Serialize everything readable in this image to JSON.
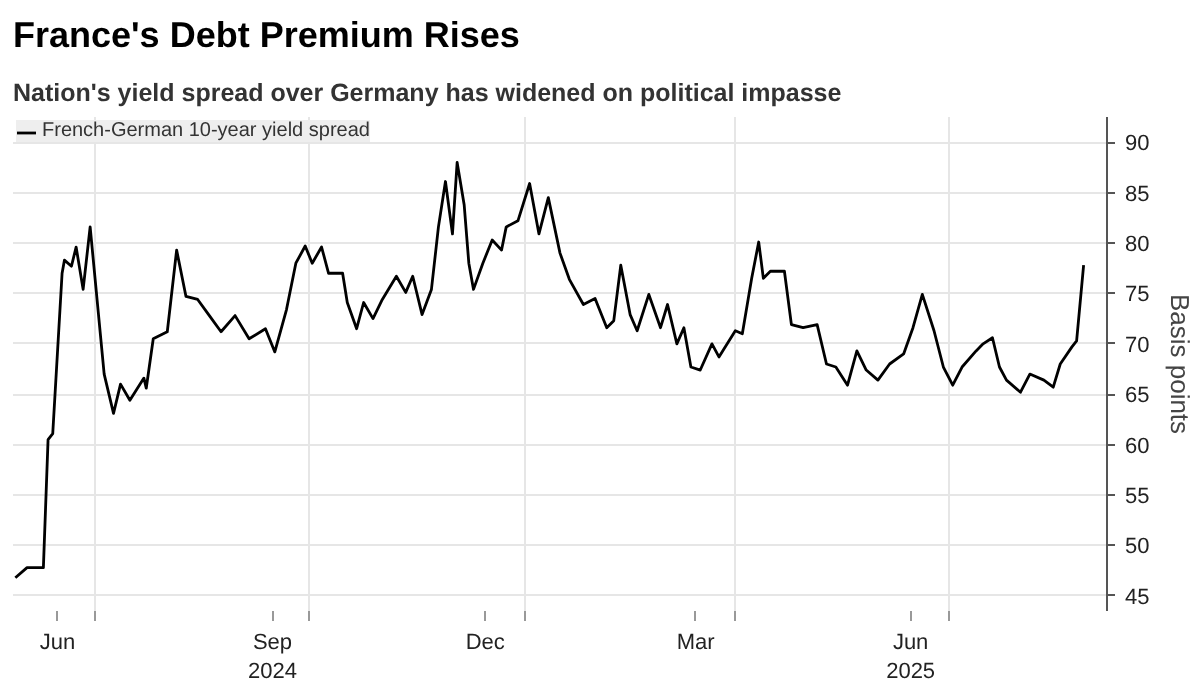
{
  "chart_data": {
    "type": "line",
    "title": "France's Debt Premium Rises",
    "subtitle": "Nation's yield spread over Germany has widened on political impasse",
    "ylabel": "Basis points",
    "x": [
      "2024-05-28",
      "2024-06-02",
      "2024-06-09",
      "2024-06-11",
      "2024-06-13",
      "2024-06-17",
      "2024-06-18",
      "2024-06-21",
      "2024-06-23",
      "2024-06-26",
      "2024-06-29",
      "2024-07-05",
      "2024-07-09",
      "2024-07-12",
      "2024-07-16",
      "2024-07-22",
      "2024-07-23",
      "2024-07-26",
      "2024-08-01",
      "2024-08-05",
      "2024-08-09",
      "2024-08-14",
      "2024-08-19",
      "2024-08-24",
      "2024-08-30",
      "2024-09-05",
      "2024-09-12",
      "2024-09-16",
      "2024-09-21",
      "2024-09-25",
      "2024-09-29",
      "2024-10-02",
      "2024-10-06",
      "2024-10-09",
      "2024-10-15",
      "2024-10-17",
      "2024-10-21",
      "2024-10-24",
      "2024-10-28",
      "2024-11-01",
      "2024-11-07",
      "2024-11-11",
      "2024-11-14",
      "2024-11-18",
      "2024-11-22",
      "2024-11-25",
      "2024-11-28",
      "2024-12-01",
      "2024-12-03",
      "2024-12-06",
      "2024-12-08",
      "2024-12-10",
      "2024-12-14",
      "2024-12-18",
      "2024-12-22",
      "2024-12-24",
      "2024-12-29",
      "2025-01-03",
      "2025-01-07",
      "2025-01-11",
      "2025-01-16",
      "2025-01-20",
      "2025-01-26",
      "2025-01-31",
      "2025-02-05",
      "2025-02-08",
      "2025-02-11",
      "2025-02-15",
      "2025-02-18",
      "2025-02-23",
      "2025-02-28",
      "2025-03-03",
      "2025-03-07",
      "2025-03-10",
      "2025-03-13",
      "2025-03-17",
      "2025-03-22",
      "2025-03-25",
      "2025-04-01",
      "2025-04-04",
      "2025-04-08",
      "2025-04-11",
      "2025-04-13",
      "2025-04-16",
      "2025-04-22",
      "2025-04-25",
      "2025-04-30",
      "2025-05-06",
      "2025-05-10",
      "2025-05-14",
      "2025-05-19",
      "2025-05-23",
      "2025-05-27",
      "2025-06-01",
      "2025-06-06",
      "2025-06-12",
      "2025-06-16",
      "2025-06-20",
      "2025-06-25",
      "2025-06-29",
      "2025-07-03",
      "2025-07-07",
      "2025-07-13",
      "2025-07-16",
      "2025-07-20",
      "2025-07-23",
      "2025-07-26",
      "2025-08-01",
      "2025-08-05",
      "2025-08-11",
      "2025-08-15",
      "2025-08-18",
      "2025-08-23",
      "2025-08-25",
      "2025-08-28"
    ],
    "series": [
      {
        "name": "French-German 10-year yield spread",
        "color": "#000000",
        "values": [
          46.8,
          47.8,
          47.8,
          60.5,
          61.1,
          77,
          78.3,
          77.7,
          79.6,
          75.4,
          81.6,
          67,
          63.1,
          66,
          64.4,
          66.6,
          65.6,
          70.5,
          71.2,
          79.3,
          74.7,
          74.4,
          72.8,
          71.2,
          72.8,
          70.5,
          71.5,
          69.2,
          73.4,
          78,
          79.7,
          78,
          79.6,
          77,
          77,
          74.1,
          71.5,
          74.1,
          72.5,
          74.4,
          76.7,
          75.1,
          76.7,
          72.9,
          75.4,
          81.6,
          86.1,
          80.9,
          88,
          83.8,
          78,
          75.4,
          78,
          80.3,
          79.3,
          81.6,
          82.2,
          85.9,
          80.9,
          84.5,
          79,
          76.4,
          73.9,
          74.5,
          71.6,
          72.3,
          77.8,
          72.9,
          71.3,
          74.9,
          71.6,
          73.9,
          70,
          71.6,
          67.7,
          67.4,
          70,
          68.7,
          71.3,
          71,
          76.5,
          80.1,
          76.5,
          77.2,
          77.2,
          71.9,
          71.6,
          71.9,
          68,
          67.7,
          65.9,
          69.3,
          67.4,
          66.4,
          68,
          69,
          71.6,
          74.9,
          71.3,
          67.7,
          65.9,
          67.7,
          69.3,
          70,
          70.6,
          67.7,
          66.4,
          65.2,
          67,
          66.4,
          65.7,
          68,
          69.7,
          70.3,
          77.8
        ]
      }
    ],
    "xlim": [
      "2024-05-27",
      "2025-09-07"
    ],
    "xticks": [
      {
        "value": "2024-06-15",
        "label": "Jun"
      },
      {
        "value": "2024-07-01",
        "label": null
      },
      {
        "value": "2024-09-15",
        "label": "Sep\n2024"
      },
      {
        "value": "2024-10-01",
        "label": null
      },
      {
        "value": "2024-12-15",
        "label": "Dec"
      },
      {
        "value": "2025-01-01",
        "label": null
      },
      {
        "value": "2025-03-15",
        "label": "Mar"
      },
      {
        "value": "2025-04-01",
        "label": null
      },
      {
        "value": "2025-06-15",
        "label": "Jun\n2025"
      },
      {
        "value": "2025-07-01",
        "label": null
      }
    ],
    "ylim": [
      43.5,
      92.5
    ],
    "yticks": [
      45,
      50,
      55,
      60,
      65,
      70,
      75,
      80,
      85,
      90
    ],
    "grid": true,
    "legend": "top left",
    "marker": "none",
    "line_style": "solid"
  }
}
